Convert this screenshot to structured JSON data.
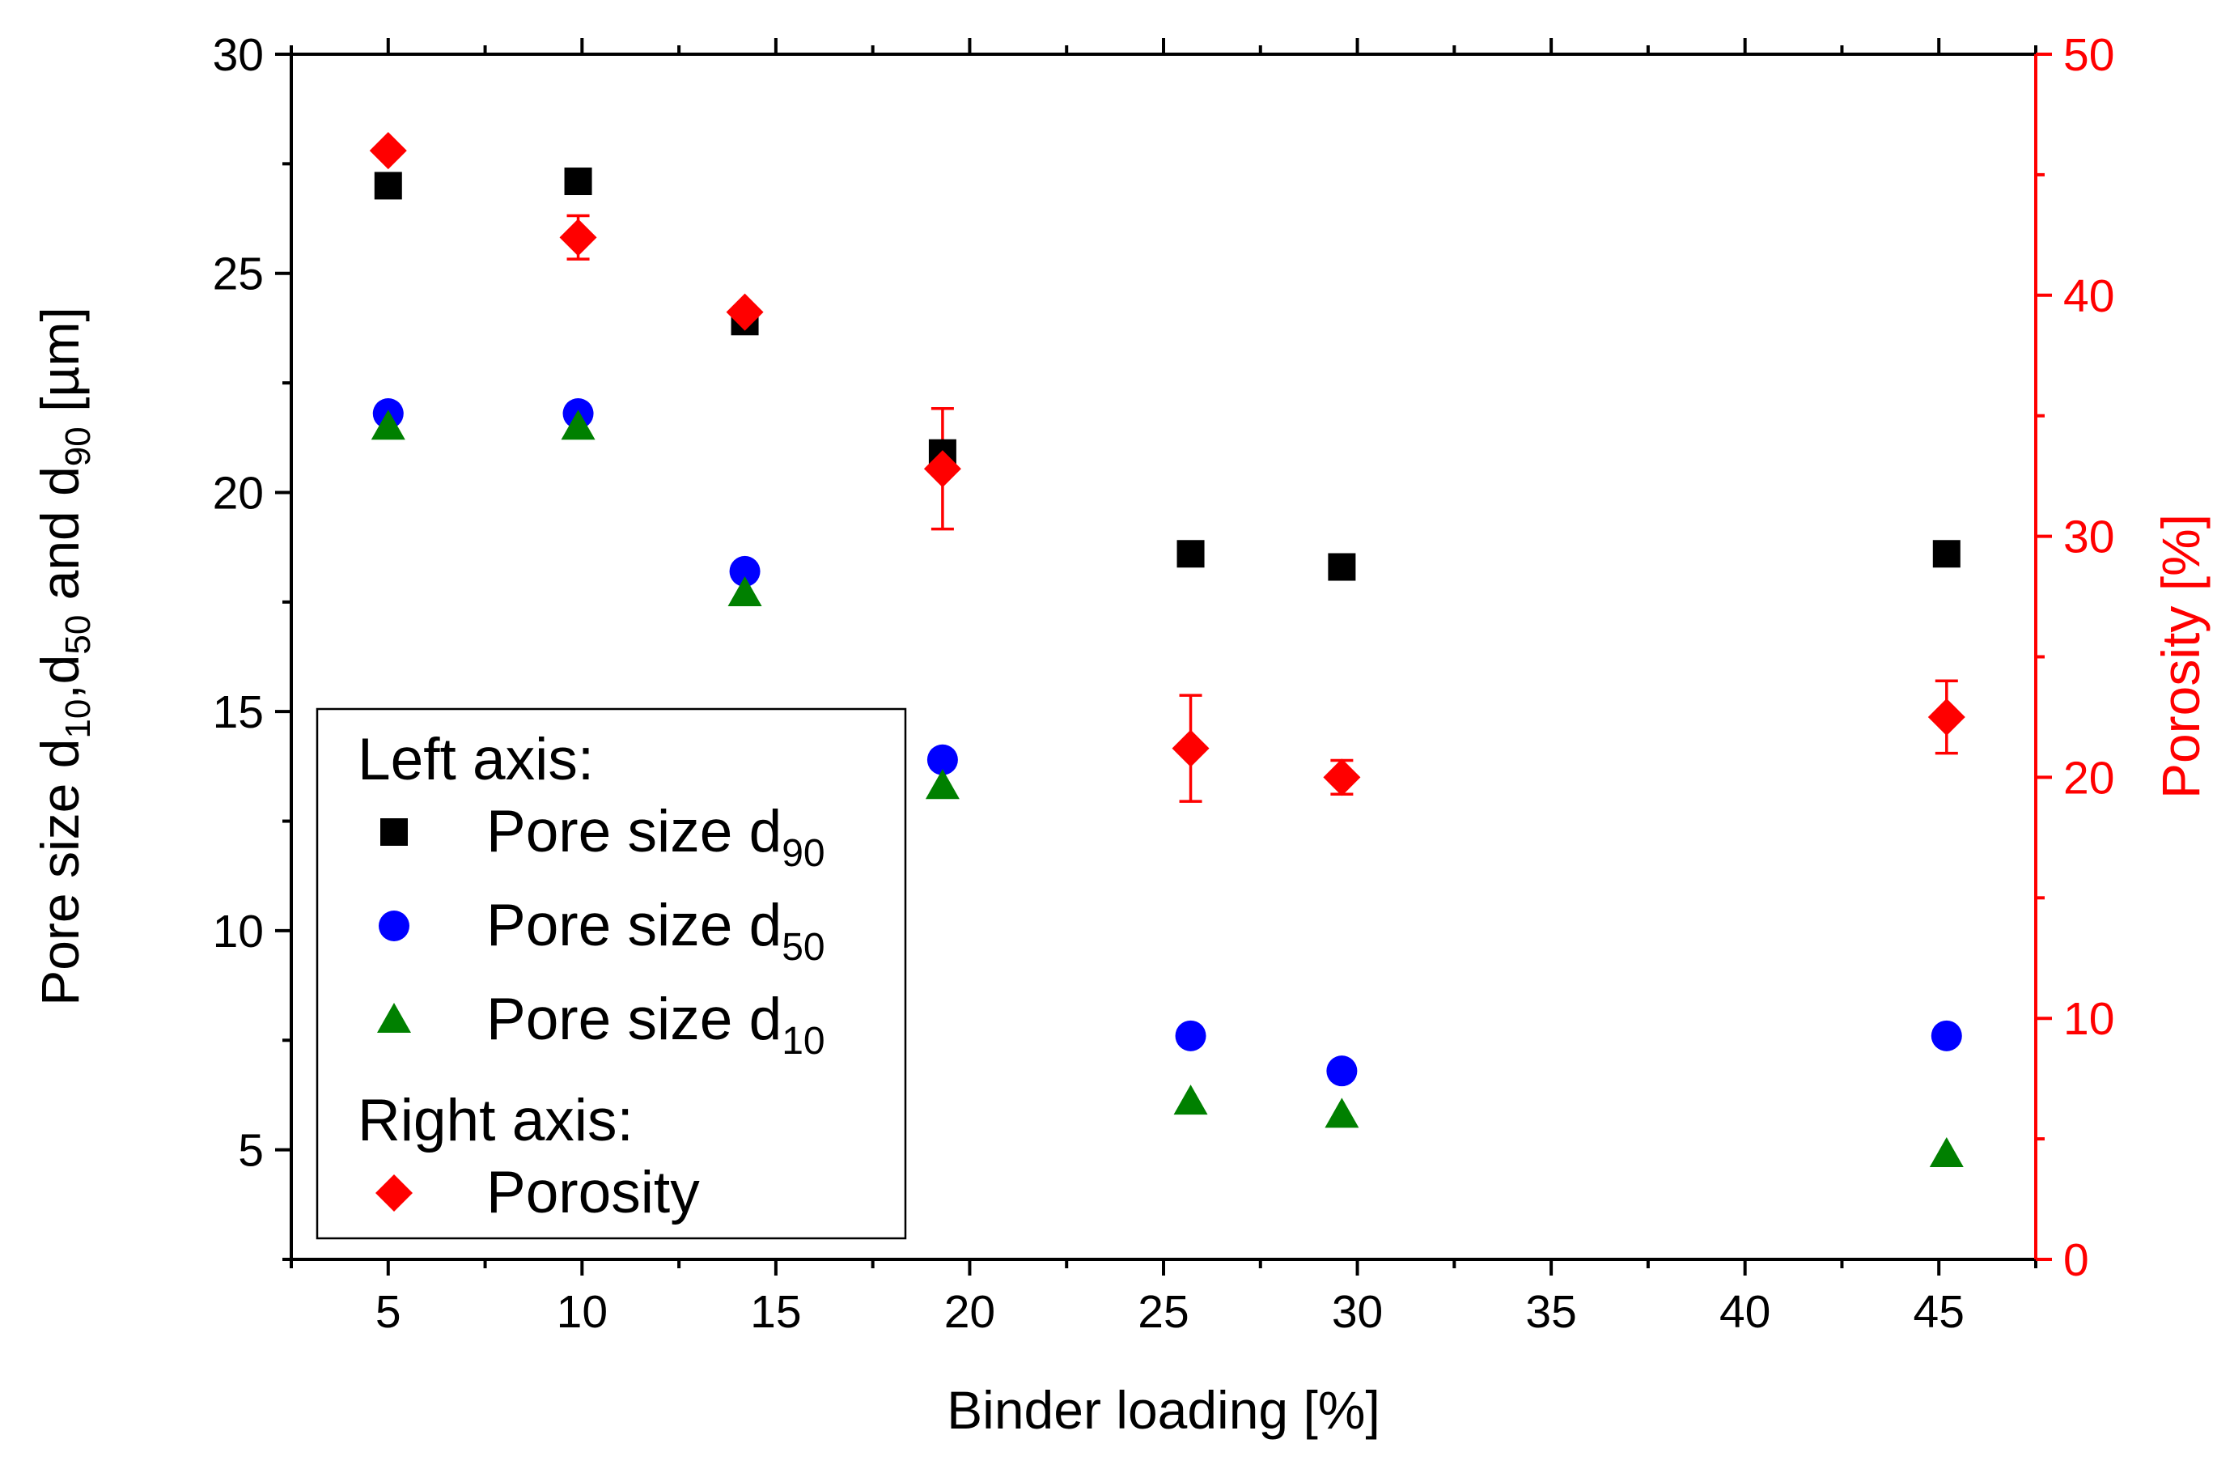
{
  "chart_data": {
    "type": "scatter",
    "x_axis": {
      "label": "Binder loading [%]",
      "range": [
        2.5,
        47.5
      ],
      "ticks": [
        5,
        10,
        15,
        20,
        25,
        30,
        35,
        40,
        45
      ],
      "tick_labels": [
        "5",
        "10",
        "15",
        "20",
        "25",
        "30",
        "35",
        "40",
        "45"
      ]
    },
    "left_axis": {
      "label_parts": [
        "Pore size d",
        "10",
        ",d",
        "50",
        " and d",
        "90",
        " [µm]"
      ],
      "range": [
        2.5,
        30
      ],
      "ticks": [
        5,
        10,
        15,
        20,
        25,
        30
      ],
      "tick_labels": [
        "5",
        "10",
        "15",
        "20",
        "25",
        "30"
      ]
    },
    "right_axis": {
      "label": "Porosity [%]",
      "color": "#ff0000",
      "range": [
        0,
        50
      ],
      "ticks": [
        0,
        10,
        20,
        30,
        40,
        50
      ],
      "tick_labels": [
        "0",
        "10",
        "20",
        "30",
        "40",
        "50"
      ]
    },
    "series": [
      {
        "name": "Pore size d90",
        "label_main": "Pore size d",
        "label_sub": "90",
        "axis": "left",
        "marker": "square",
        "color": "#000000",
        "x": [
          5.0,
          9.9,
          14.2,
          19.3,
          25.7,
          29.6,
          45.2
        ],
        "y": [
          27.0,
          27.1,
          23.9,
          20.9,
          18.6,
          18.3,
          18.6
        ]
      },
      {
        "name": "Pore size d50",
        "label_main": "Pore size d",
        "label_sub": "50",
        "axis": "left",
        "marker": "circle",
        "color": "#0000ff",
        "x": [
          5.0,
          9.9,
          14.2,
          19.3,
          25.7,
          29.6,
          45.2
        ],
        "y": [
          21.8,
          21.8,
          18.2,
          13.9,
          7.6,
          6.8,
          7.6
        ]
      },
      {
        "name": "Pore size d10",
        "label_main": "Pore size d",
        "label_sub": "10",
        "axis": "left",
        "marker": "triangle",
        "color": "#008000",
        "x": [
          5.0,
          9.9,
          14.2,
          19.3,
          25.7,
          29.6,
          45.2
        ],
        "y": [
          21.5,
          21.5,
          17.7,
          13.3,
          6.1,
          5.8,
          4.9
        ]
      },
      {
        "name": "Porosity",
        "label_main": "Porosity",
        "label_sub": "",
        "axis": "right",
        "marker": "diamond",
        "color": "#ff0000",
        "x": [
          5.0,
          9.9,
          14.2,
          19.3,
          25.7,
          29.6,
          45.2
        ],
        "y": [
          46.0,
          42.4,
          39.3,
          32.8,
          21.2,
          20.0,
          22.5
        ],
        "error": [
          0.0,
          0.9,
          0.0,
          2.5,
          2.2,
          0.7,
          1.5
        ]
      }
    ],
    "legend": {
      "position": "bottom-left",
      "left_heading": "Left axis:",
      "right_heading": "Right axis:"
    }
  }
}
